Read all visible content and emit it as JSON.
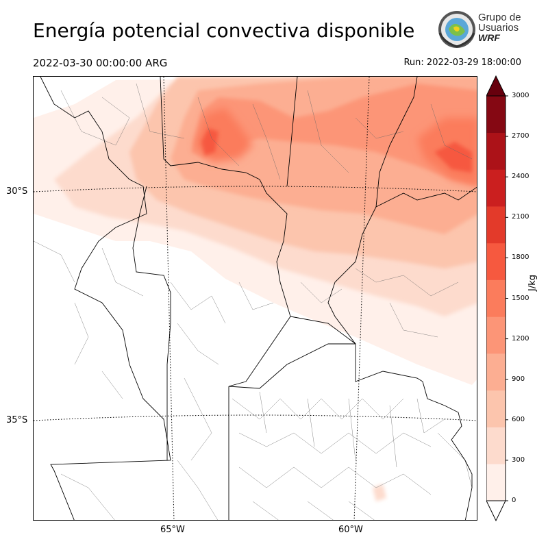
{
  "header": {
    "title": "Energía potencial convectiva disponible",
    "valid_time": "2022-03-30 00:00:00 ARG",
    "run_time": "Run: 2022-03-29 18:00:00"
  },
  "logo": {
    "line1": "Grupo de",
    "line2": "Usuarios",
    "line3": "WRF"
  },
  "map": {
    "lat_labels": [
      "30°S",
      "35°S"
    ],
    "lon_labels": [
      "65°W",
      "60°W"
    ]
  },
  "colorbar": {
    "unit": "J/kg",
    "ticks": [
      "0",
      "300",
      "600",
      "900",
      "1200",
      "1500",
      "1800",
      "2100",
      "2400",
      "2700",
      "3000"
    ],
    "levels": [
      0,
      150,
      300,
      450,
      600,
      750,
      900,
      1050,
      1200,
      1350,
      1500,
      1650,
      1800,
      1950,
      2100,
      2250,
      2400,
      2550,
      2700,
      2850,
      3000
    ],
    "colors": [
      "#fff0ea",
      "#fddbcd",
      "#fcc5ad",
      "#fcae92",
      "#fc9577",
      "#fb7c5c",
      "#f6593f",
      "#e33a2a",
      "#cb1f1f",
      "#ac1218",
      "#850813"
    ],
    "over_color": "#67000d",
    "under_color": "#ffffff"
  }
}
